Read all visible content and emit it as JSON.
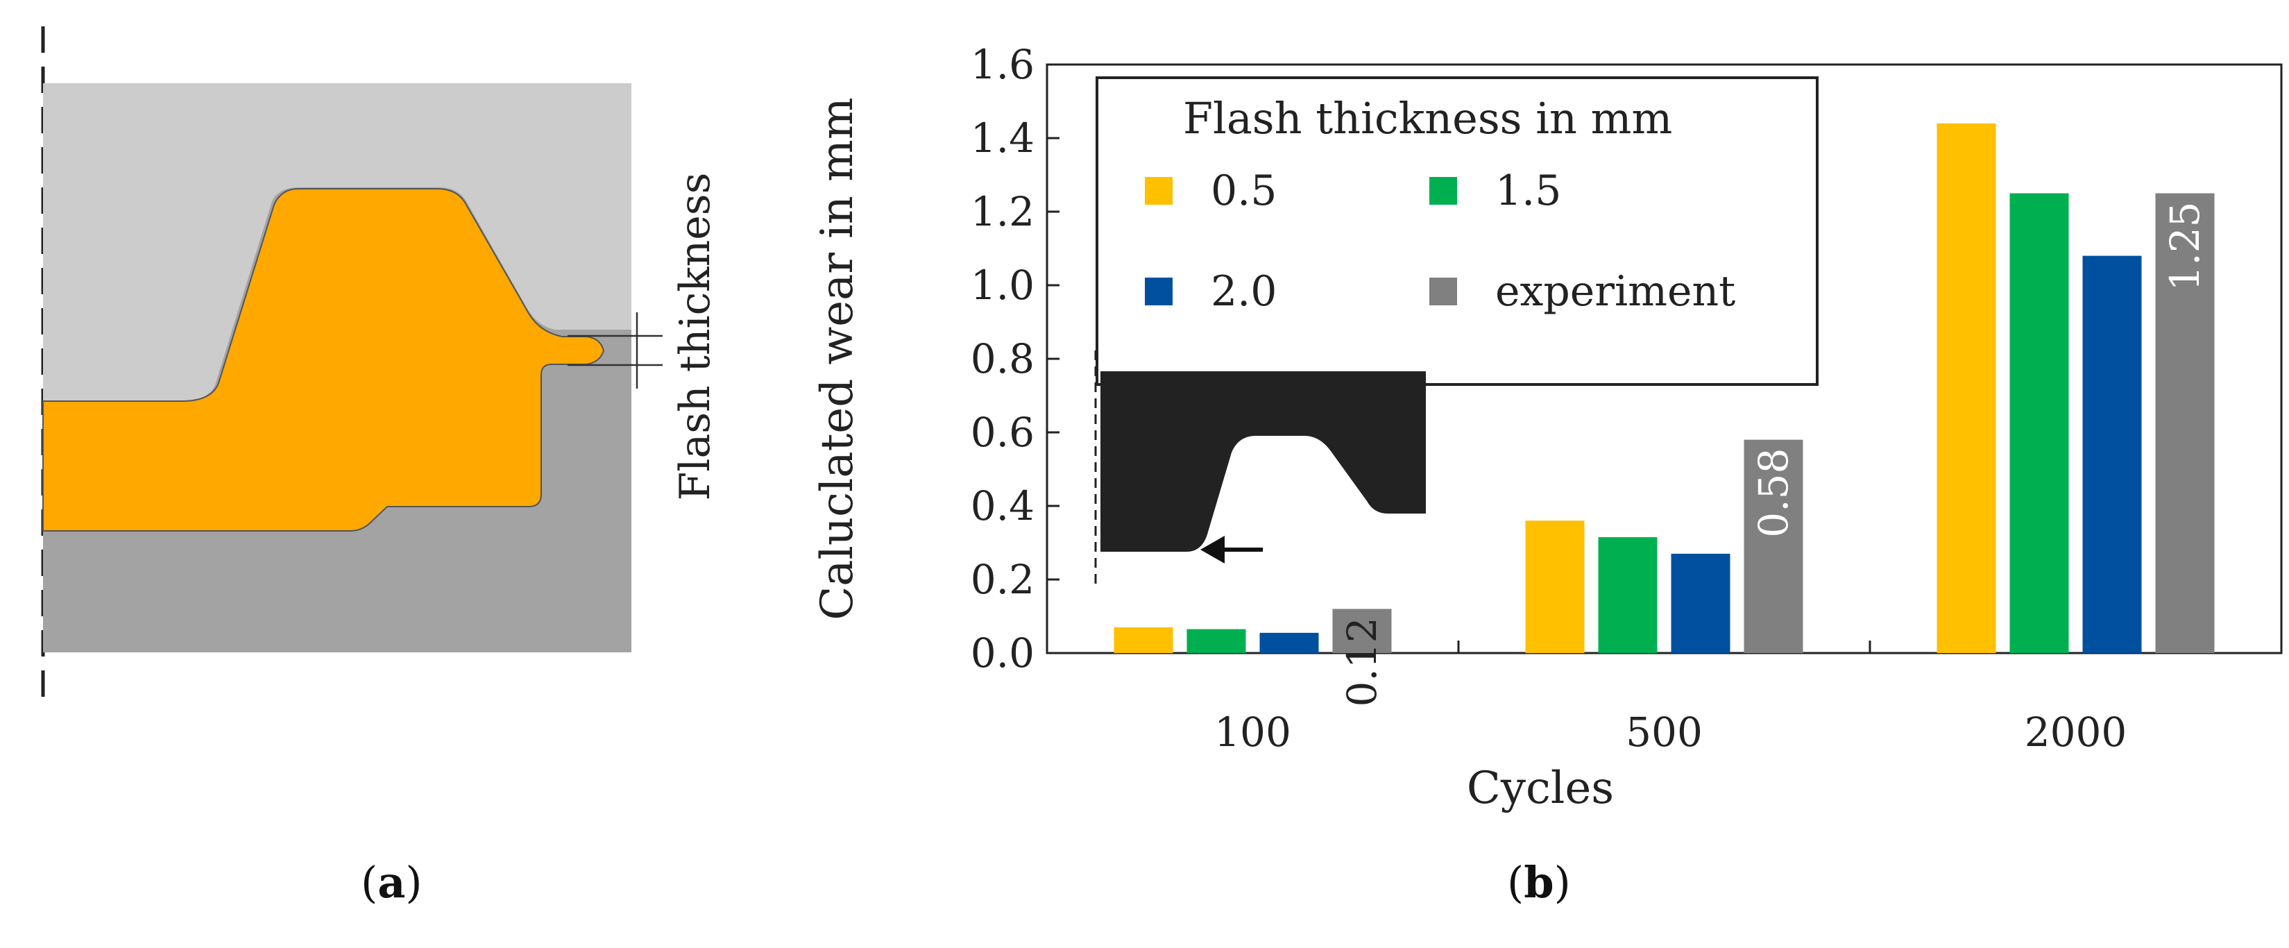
{
  "panel_a": {
    "annotation": "Flash thickness",
    "caption_letter": "a",
    "colors": {
      "upper_die": "#cccccc",
      "lower_die": "#a3a3a3",
      "workpiece": "#ffa800"
    }
  },
  "panel_b": {
    "caption_letter": "b"
  },
  "chart_data": {
    "type": "bar",
    "title": "",
    "xlabel": "Cycles",
    "ylabel": "Caluclated wear in mm",
    "categories": [
      "100",
      "500",
      "2000"
    ],
    "ylim": [
      0,
      1.6
    ],
    "yticks": [
      "0.0",
      "0.2",
      "0.4",
      "0.6",
      "0.8",
      "1.0",
      "1.2",
      "1.4",
      "1.6"
    ],
    "legend_title": "Flash thickness in mm",
    "legend_position": "top-left",
    "series": [
      {
        "name": "0.5",
        "color": "#ffc000",
        "values": [
          0.07,
          0.36,
          1.44
        ]
      },
      {
        "name": "1.5",
        "color": "#00b050",
        "values": [
          0.065,
          0.315,
          1.25
        ]
      },
      {
        "name": "2.0",
        "color": "#0050a0",
        "values": [
          0.055,
          0.27,
          1.08
        ]
      },
      {
        "name": "experiment",
        "color": "#808080",
        "values": [
          0.12,
          0.58,
          1.25
        ]
      }
    ],
    "data_labels": [
      "0.12",
      "0.58",
      "1.25"
    ],
    "inset": "worn die contour with arrow"
  }
}
